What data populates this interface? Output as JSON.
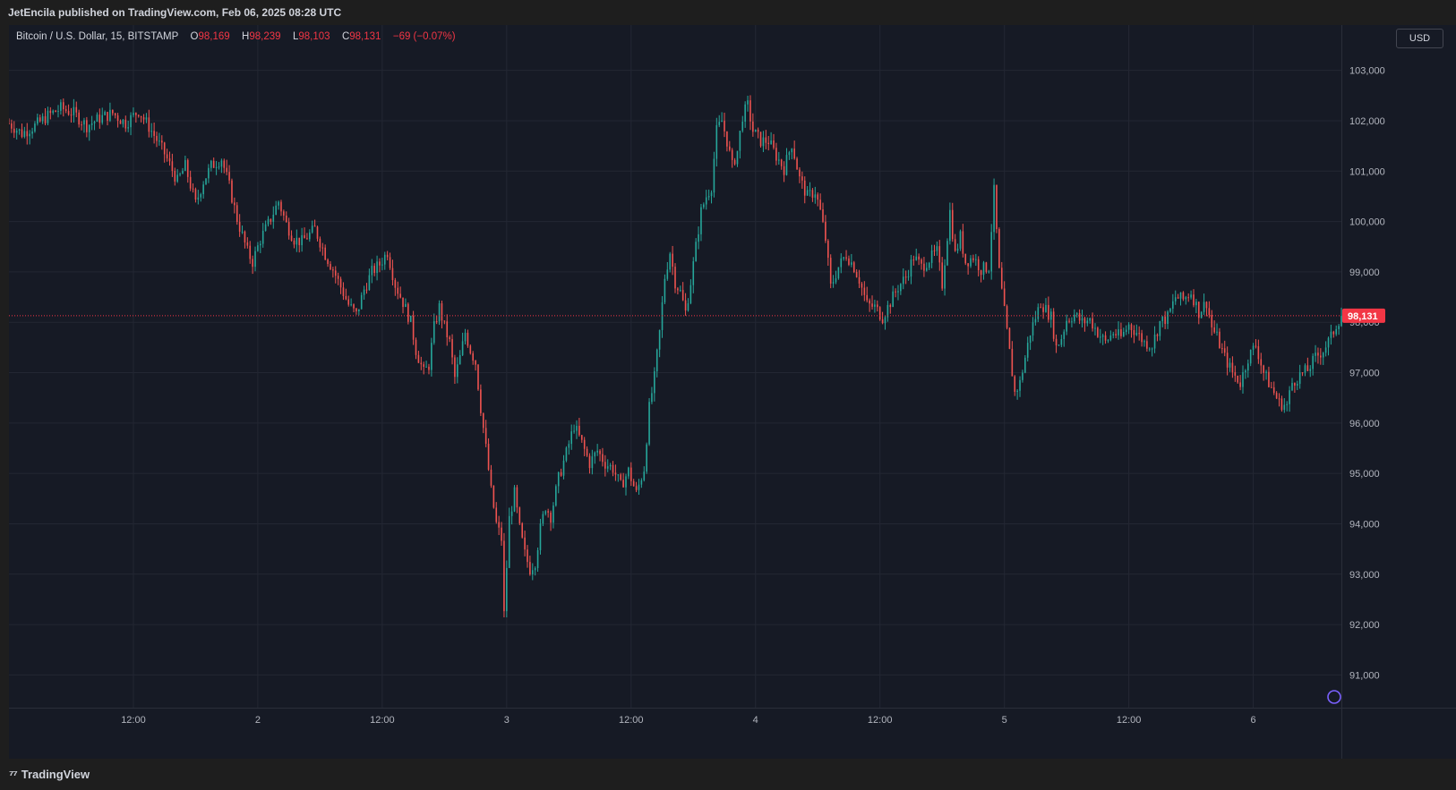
{
  "header": {
    "published": "JetEncila published on TradingView.com, Feb 06, 2025 08:28 UTC"
  },
  "footer": {
    "brand": "TradingView"
  },
  "legend": {
    "symbol": "Bitcoin / U.S. Dollar, 15, BITSTAMP",
    "open_label": "O",
    "open": "98,169",
    "high_label": "H",
    "high": "98,239",
    "low_label": "L",
    "low": "98,103",
    "close_label": "C",
    "close": "98,131",
    "change": "−69 (−0.07%)"
  },
  "currency": "USD",
  "last_price_label": "98,131",
  "colors": {
    "up": "#26a69a",
    "down": "#ef5350",
    "background": "#161a25",
    "grid": "#232733",
    "axis_text": "#b2b5be",
    "last_price": "#f23645"
  },
  "chart_data": {
    "type": "candlestick",
    "title": "Bitcoin / U.S. Dollar, 15, BITSTAMP",
    "y_ticks": [
      91000,
      92000,
      93000,
      94000,
      95000,
      96000,
      97000,
      98000,
      99000,
      100000,
      101000,
      102000,
      103000
    ],
    "y_tick_labels": [
      "91,000",
      "92,000",
      "93,000",
      "94,000",
      "95,000",
      "96,000",
      "97,000",
      "98,000",
      "99,000",
      "100,000",
      "101,000",
      "102,000",
      "103,000"
    ],
    "ylim": [
      90350,
      103900
    ],
    "x_ticks": [
      {
        "label": "12:00",
        "index": 48
      },
      {
        "label": "2",
        "index": 96
      },
      {
        "label": "12:00",
        "index": 144
      },
      {
        "label": "3",
        "index": 192
      },
      {
        "label": "12:00",
        "index": 240
      },
      {
        "label": "4",
        "index": 288
      },
      {
        "label": "12:00",
        "index": 336
      },
      {
        "label": "5",
        "index": 384
      },
      {
        "label": "12:00",
        "index": 432
      },
      {
        "label": "6",
        "index": 480
      }
    ],
    "x_range": [
      0,
      514
    ],
    "last_price": 98131,
    "grid": true,
    "price_path": [
      [
        0,
        101950
      ],
      [
        5,
        101750
      ],
      [
        10,
        101900
      ],
      [
        15,
        102100
      ],
      [
        20,
        102250
      ],
      [
        25,
        102150
      ],
      [
        30,
        101900
      ],
      [
        35,
        102050
      ],
      [
        40,
        102150
      ],
      [
        45,
        101950
      ],
      [
        50,
        102200
      ],
      [
        55,
        101800
      ],
      [
        60,
        101350
      ],
      [
        65,
        100800
      ],
      [
        68,
        101100
      ],
      [
        72,
        100350
      ],
      [
        75,
        100800
      ],
      [
        78,
        101100
      ],
      [
        82,
        101250
      ],
      [
        85,
        100700
      ],
      [
        88,
        100050
      ],
      [
        92,
        99400
      ],
      [
        94,
        99200
      ],
      [
        97,
        99650
      ],
      [
        100,
        99950
      ],
      [
        104,
        100400
      ],
      [
        107,
        99950
      ],
      [
        110,
        99650
      ],
      [
        113,
        99600
      ],
      [
        118,
        99850
      ],
      [
        122,
        99350
      ],
      [
        125,
        99050
      ],
      [
        128,
        98700
      ],
      [
        131,
        98350
      ],
      [
        134,
        98150
      ],
      [
        137,
        98650
      ],
      [
        140,
        99000
      ],
      [
        143,
        99150
      ],
      [
        146,
        99400
      ],
      [
        149,
        98750
      ],
      [
        152,
        98400
      ],
      [
        155,
        98000
      ],
      [
        157,
        97450
      ],
      [
        160,
        97000
      ],
      [
        162,
        97150
      ],
      [
        164,
        97900
      ],
      [
        166,
        98300
      ],
      [
        168,
        97900
      ],
      [
        170,
        97600
      ],
      [
        172,
        96900
      ],
      [
        174,
        97300
      ],
      [
        176,
        97800
      ],
      [
        178,
        97450
      ],
      [
        180,
        97200
      ],
      [
        182,
        96300
      ],
      [
        184,
        95500
      ],
      [
        186,
        94650
      ],
      [
        188,
        94000
      ],
      [
        190,
        93700
      ],
      [
        191,
        92200
      ],
      [
        193,
        94100
      ],
      [
        195,
        94600
      ],
      [
        197,
        93900
      ],
      [
        199,
        93400
      ],
      [
        201,
        93100
      ],
      [
        203,
        93250
      ],
      [
        205,
        93900
      ],
      [
        207,
        94350
      ],
      [
        209,
        94150
      ],
      [
        212,
        94900
      ],
      [
        215,
        95400
      ],
      [
        218,
        95950
      ],
      [
        221,
        95600
      ],
      [
        224,
        95200
      ],
      [
        227,
        95450
      ],
      [
        230,
        95200
      ],
      [
        233,
        95100
      ],
      [
        236,
        94750
      ],
      [
        239,
        95050
      ],
      [
        242,
        94600
      ],
      [
        245,
        95100
      ],
      [
        247,
        96300
      ],
      [
        249,
        96900
      ],
      [
        251,
        97800
      ],
      [
        253,
        98900
      ],
      [
        255,
        99400
      ],
      [
        257,
        98800
      ],
      [
        259,
        98600
      ],
      [
        261,
        98200
      ],
      [
        263,
        98800
      ],
      [
        265,
        99500
      ],
      [
        267,
        100200
      ],
      [
        269,
        100500
      ],
      [
        271,
        100700
      ],
      [
        273,
        101800
      ],
      [
        275,
        102000
      ],
      [
        277,
        101600
      ],
      [
        279,
        101100
      ],
      [
        281,
        101400
      ],
      [
        283,
        102100
      ],
      [
        285,
        102300
      ],
      [
        287,
        101800
      ],
      [
        290,
        101600
      ],
      [
        293,
        101600
      ],
      [
        296,
        101300
      ],
      [
        299,
        101050
      ],
      [
        302,
        101550
      ],
      [
        305,
        100850
      ],
      [
        308,
        100500
      ],
      [
        311,
        100600
      ],
      [
        313,
        100200
      ],
      [
        315,
        99650
      ],
      [
        317,
        98700
      ],
      [
        320,
        99100
      ],
      [
        323,
        99350
      ],
      [
        326,
        99100
      ],
      [
        328,
        98850
      ],
      [
        331,
        98350
      ],
      [
        334,
        98300
      ],
      [
        337,
        98100
      ],
      [
        340,
        98400
      ],
      [
        343,
        98700
      ],
      [
        346,
        98900
      ],
      [
        349,
        99300
      ],
      [
        352,
        99100
      ],
      [
        355,
        99250
      ],
      [
        358,
        99400
      ],
      [
        360,
        98750
      ],
      [
        363,
        100200
      ],
      [
        365,
        99350
      ],
      [
        367,
        99700
      ],
      [
        369,
        99200
      ],
      [
        372,
        99300
      ],
      [
        375,
        99050
      ],
      [
        378,
        99100
      ],
      [
        380,
        100600
      ],
      [
        382,
        99000
      ],
      [
        384,
        98200
      ],
      [
        386,
        97400
      ],
      [
        388,
        96600
      ],
      [
        390,
        96800
      ],
      [
        392,
        97300
      ],
      [
        394,
        97800
      ],
      [
        396,
        98100
      ],
      [
        398,
        98400
      ],
      [
        400,
        98250
      ],
      [
        402,
        98100
      ],
      [
        404,
        97500
      ],
      [
        406,
        97700
      ],
      [
        408,
        98050
      ],
      [
        411,
        98150
      ],
      [
        414,
        98000
      ],
      [
        417,
        98050
      ],
      [
        420,
        97800
      ],
      [
        423,
        97600
      ],
      [
        426,
        97800
      ],
      [
        429,
        97700
      ],
      [
        432,
        97950
      ],
      [
        435,
        97800
      ],
      [
        438,
        97600
      ],
      [
        441,
        97550
      ],
      [
        444,
        98000
      ],
      [
        447,
        98100
      ],
      [
        450,
        98500
      ],
      [
        453,
        98450
      ],
      [
        456,
        98600
      ],
      [
        459,
        98200
      ],
      [
        462,
        98400
      ],
      [
        464,
        97900
      ],
      [
        466,
        97700
      ],
      [
        469,
        97300
      ],
      [
        472,
        97000
      ],
      [
        475,
        96800
      ],
      [
        478,
        97300
      ],
      [
        481,
        97550
      ],
      [
        484,
        97000
      ],
      [
        487,
        96700
      ],
      [
        490,
        96400
      ],
      [
        493,
        96350
      ],
      [
        495,
        96800
      ],
      [
        498,
        96950
      ],
      [
        501,
        97050
      ],
      [
        504,
        97300
      ],
      [
        507,
        97450
      ],
      [
        510,
        97700
      ],
      [
        512,
        97950
      ],
      [
        514,
        98131
      ]
    ]
  }
}
